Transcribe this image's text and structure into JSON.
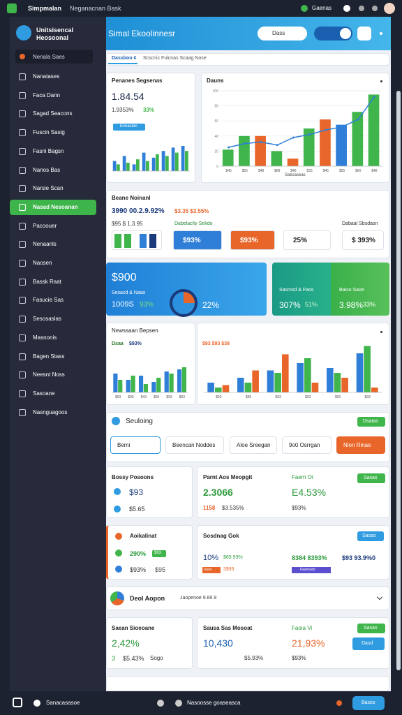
{
  "topbar": {
    "app": "Simpmalan",
    "subtitle": "Neganacnan Bask",
    "status": "Gaenas"
  },
  "sidebar": {
    "profile": "Unitsisencal Heosoonal",
    "search": "Nenala Saes",
    "items": [
      "Nanatases",
      "Faca Dann",
      "Sagad Seacons",
      "Fuscin Sasig",
      "Fasni Bagsn",
      "Nanos Bas",
      "Narsie Scan",
      "Nasad Nesoanan",
      "Pacoouer",
      "Nenaanls",
      "Naosen",
      "Bassk Raat",
      "Fasucie Sas",
      "Sesosaslas",
      "Masnonis",
      "Bagen Stass",
      "Neesnt Noss",
      "Sasoane",
      "Nasnguagoos"
    ],
    "active": 7
  },
  "main": {
    "header": {
      "title": "Simal Ekoolinnesr",
      "search": "Dass"
    },
    "tabs": [
      "Dassboo ¢",
      "Scscnic Fulcnas Scaag Nose"
    ],
    "card1": {
      "title": "Penanes Segsenas",
      "value": "1.84.54",
      "sub": "1.9353%",
      "delta": "33%",
      "button": "Evnaslan",
      "chart": {
        "ylim": [
          0,
          100
        ],
        "series": [
          {
            "color": "#2f7fd8",
            "values": [
              30,
              45,
              20,
              55,
              40,
              60,
              70,
              75
            ]
          },
          {
            "color": "#3fb54b",
            "values": [
              20,
              25,
              35,
              30,
              50,
              45,
              55,
              60
            ]
          }
        ]
      }
    },
    "card2": {
      "title": "Dauns",
      "xlabel": "Saesaseas",
      "chart": {
        "ylim": [
          0,
          100
        ],
        "yticks": [
          0,
          20,
          40,
          60,
          80,
          100
        ],
        "categories": [
          "$45",
          "$55",
          "$48",
          "$68",
          "$46",
          "$35",
          "$45",
          "$55",
          "$60",
          "$48"
        ],
        "series": [
          {
            "colors": [
              "#3fb54b",
              "#3fb54b",
              "#e8662a",
              "#3fb54b",
              "#e8662a",
              "#3fb54b",
              "#e8662a",
              "#2f7fd8",
              "#3fb54b",
              "#3fb54b"
            ],
            "values": [
              22,
              40,
              40,
              20,
              10,
              50,
              62,
              55,
              72,
              95
            ]
          }
        ],
        "line": {
          "color": "#2f7fd8",
          "values": [
            25,
            30,
            32,
            28,
            38,
            42,
            48,
            52,
            62,
            92
          ]
        }
      }
    },
    "card3": {
      "title": "Beane Noinanl",
      "line1": "3990 00.2.9.92%",
      "line1b": "$3.35 $3.55%",
      "line2": "$95 $ 1.3.95",
      "link": "Dabelaclty Sekdo",
      "right": "Dabaal Sbsdasn",
      "chips": [
        "$93%",
        "$93%",
        "25%",
        "$ 393%"
      ]
    },
    "banner": {
      "blue_value": "$900",
      "blue_label": "Sesacd & Naas",
      "blue_sub": "1009S",
      "blue_delta": "93%",
      "blue_pct": "22%",
      "teal_label": "Sasmsd & Faos",
      "teal_value": "307%",
      "teal_delta": "51%",
      "green_label": "Baiso Saoe",
      "green_value": "3.98%",
      "green_delta": "33%"
    },
    "card4": {
      "title": "Newssaan Bepsen",
      "sub": "Dsaa",
      "delta": "$93%",
      "right_sub": "$93 $93 $38",
      "chart_left": {
        "ylim": [
          0,
          100
        ],
        "categories": [
          "$93",
          "$93",
          "$43",
          "$95",
          "$93",
          "$93"
        ],
        "series": [
          {
            "color": "#2f7fd8",
            "values": [
              45,
              30,
              40,
              25,
              50,
              55
            ]
          },
          {
            "color": "#3fb54b",
            "values": [
              30,
              40,
              20,
              35,
              45,
              60
            ]
          }
        ]
      },
      "chart_right": {
        "ylim": [
          0,
          100
        ],
        "categories": [
          "$93",
          "$95",
          "$93",
          "$93",
          "$93",
          "$93"
        ],
        "series": [
          {
            "color": "#2f7fd8",
            "values": [
              20,
              30,
              45,
              60,
              50,
              80
            ]
          },
          {
            "color": "#3fb54b",
            "values": [
              10,
              20,
              40,
              70,
              40,
              95
            ]
          },
          {
            "color": "#e8662a",
            "values": [
              15,
              45,
              78,
              20,
              30,
              10
            ]
          }
        ]
      }
    },
    "card5": {
      "title": "Seuloing",
      "button": "Dsatas",
      "options": [
        "Bemi",
        "Beencan Noddes",
        "Aloe Sreegan",
        "9o0 Osrrgan",
        "Nion Rinae"
      ]
    },
    "card6": {
      "title": "Bossy Posoons",
      "v1": "$93",
      "v2": "$5.65"
    },
    "card7": {
      "title": "Parnt Aos Meopgit",
      "value": "2.3066",
      "sub": "1158",
      "sub2": "$3.535%",
      "right_title": "Faem Oi",
      "button": "Sasas",
      "right_value": "E4.53%",
      "right_sub": "$93%"
    },
    "card8": {
      "title": "Aoikalinat",
      "v1": "290%",
      "chip": "$93",
      "v2": "$93%",
      "v2b": "$95"
    },
    "card9": {
      "title": "Sosdnag Gok",
      "button": "Sasas",
      "v1": "10%",
      "v1b": "$65.93%",
      "chip1": "Soos",
      "chip1b": "3$93",
      "v2": "8384 8393%",
      "chip2": "Faanssds",
      "v3": "$93 93.9%0"
    },
    "card10": {
      "title": "Deol Aopon",
      "sub": "Jaopenoe 9.89.9"
    },
    "card11": {
      "title": "Saean Sioeoane",
      "value": "2,42%",
      "sub": "3",
      "sub2": "$5.43%",
      "sub3": "Sogo"
    },
    "card12": {
      "title": "Sausa Sas Mosoat",
      "value": "10,430",
      "sub": "$5.93%",
      "right_title": "Faoia Vi",
      "button": "Sasas",
      "right_value": "21,93%",
      "right_sub": "$93%",
      "button2": "Dasd"
    }
  },
  "bottombar": {
    "left": "Sanacasasoe",
    "center": "Nasoosse goaseasca",
    "button": "Basos"
  }
}
